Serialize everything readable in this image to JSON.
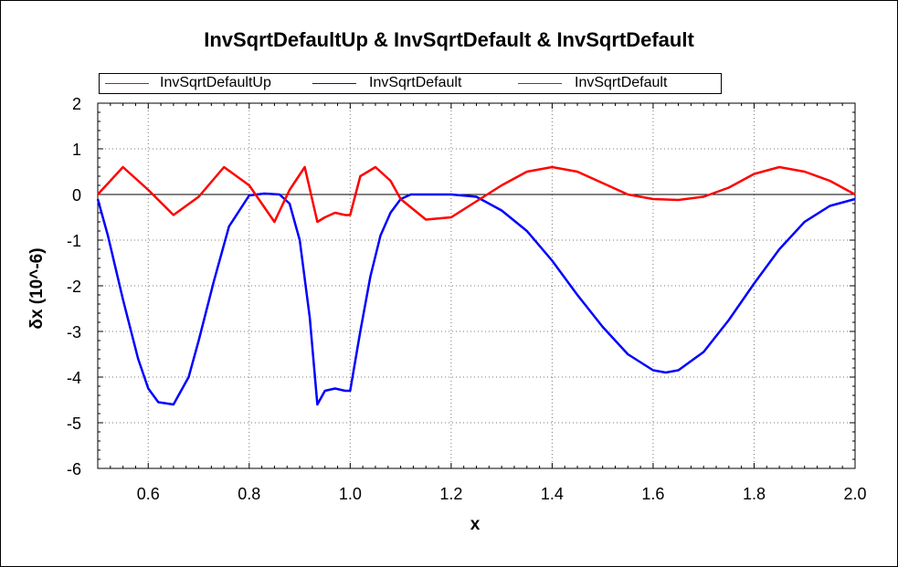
{
  "chart_data": {
    "type": "line",
    "title": "InvSqrtDefaultUp & InvSqrtDefault & InvSqrtDefault",
    "xlabel": "x",
    "ylabel": "δx (10^-6)",
    "xlim": [
      0.5,
      2.0
    ],
    "ylim": [
      -6,
      2
    ],
    "xticks": [
      "0.6",
      "0.8",
      "1.0",
      "1.2",
      "1.4",
      "1.6",
      "1.8",
      "2.0"
    ],
    "yticks": [
      "2",
      "1",
      "0",
      "-1",
      "-2",
      "-3",
      "-4",
      "-5",
      "-6"
    ],
    "grid": true,
    "legend_position": "top",
    "zero_line": 0,
    "series": [
      {
        "name": "InvSqrtDefaultUp",
        "color": "#ff0000",
        "x": [
          0.5,
          0.55,
          0.6,
          0.65,
          0.7,
          0.75,
          0.8,
          0.85,
          0.88,
          0.91,
          0.935,
          0.95,
          0.97,
          0.99,
          1.0,
          1.02,
          1.05,
          1.08,
          1.1,
          1.15,
          1.2,
          1.25,
          1.3,
          1.35,
          1.4,
          1.45,
          1.5,
          1.55,
          1.6,
          1.65,
          1.7,
          1.75,
          1.8,
          1.85,
          1.9,
          1.95,
          2.0
        ],
        "y": [
          0.0,
          0.6,
          0.1,
          -0.45,
          -0.05,
          0.6,
          0.2,
          -0.6,
          0.1,
          0.6,
          -0.6,
          -0.5,
          -0.4,
          -0.45,
          -0.45,
          0.4,
          0.6,
          0.3,
          -0.1,
          -0.55,
          -0.5,
          -0.15,
          0.2,
          0.5,
          0.6,
          0.5,
          0.25,
          0.0,
          -0.1,
          -0.12,
          -0.05,
          0.15,
          0.45,
          0.6,
          0.5,
          0.3,
          0.0
        ]
      },
      {
        "name": "InvSqrtDefault",
        "color": "#0000ff",
        "x": [
          0.5,
          0.52,
          0.55,
          0.58,
          0.6,
          0.62,
          0.65,
          0.68,
          0.7,
          0.73,
          0.76,
          0.8,
          0.83,
          0.86,
          0.88,
          0.9,
          0.92,
          0.935,
          0.95,
          0.97,
          0.99,
          1.0,
          1.02,
          1.04,
          1.06,
          1.08,
          1.1,
          1.12,
          1.15,
          1.2,
          1.25,
          1.3,
          1.35,
          1.4,
          1.45,
          1.5,
          1.55,
          1.6,
          1.625,
          1.65,
          1.7,
          1.75,
          1.8,
          1.85,
          1.9,
          1.95,
          2.0
        ],
        "y": [
          -0.1,
          -0.9,
          -2.3,
          -3.6,
          -4.25,
          -4.55,
          -4.6,
          -4.0,
          -3.2,
          -1.9,
          -0.7,
          -0.02,
          0.02,
          0.0,
          -0.2,
          -1.0,
          -2.7,
          -4.6,
          -4.3,
          -4.25,
          -4.3,
          -4.3,
          -3.0,
          -1.8,
          -0.9,
          -0.4,
          -0.1,
          0.0,
          0.0,
          0.0,
          -0.05,
          -0.35,
          -0.8,
          -1.45,
          -2.2,
          -2.9,
          -3.5,
          -3.85,
          -3.9,
          -3.85,
          -3.45,
          -2.75,
          -1.95,
          -1.2,
          -0.6,
          -0.25,
          -0.1
        ]
      },
      {
        "name": "InvSqrtDefault",
        "color": "#008000",
        "x": [],
        "y": []
      }
    ]
  }
}
